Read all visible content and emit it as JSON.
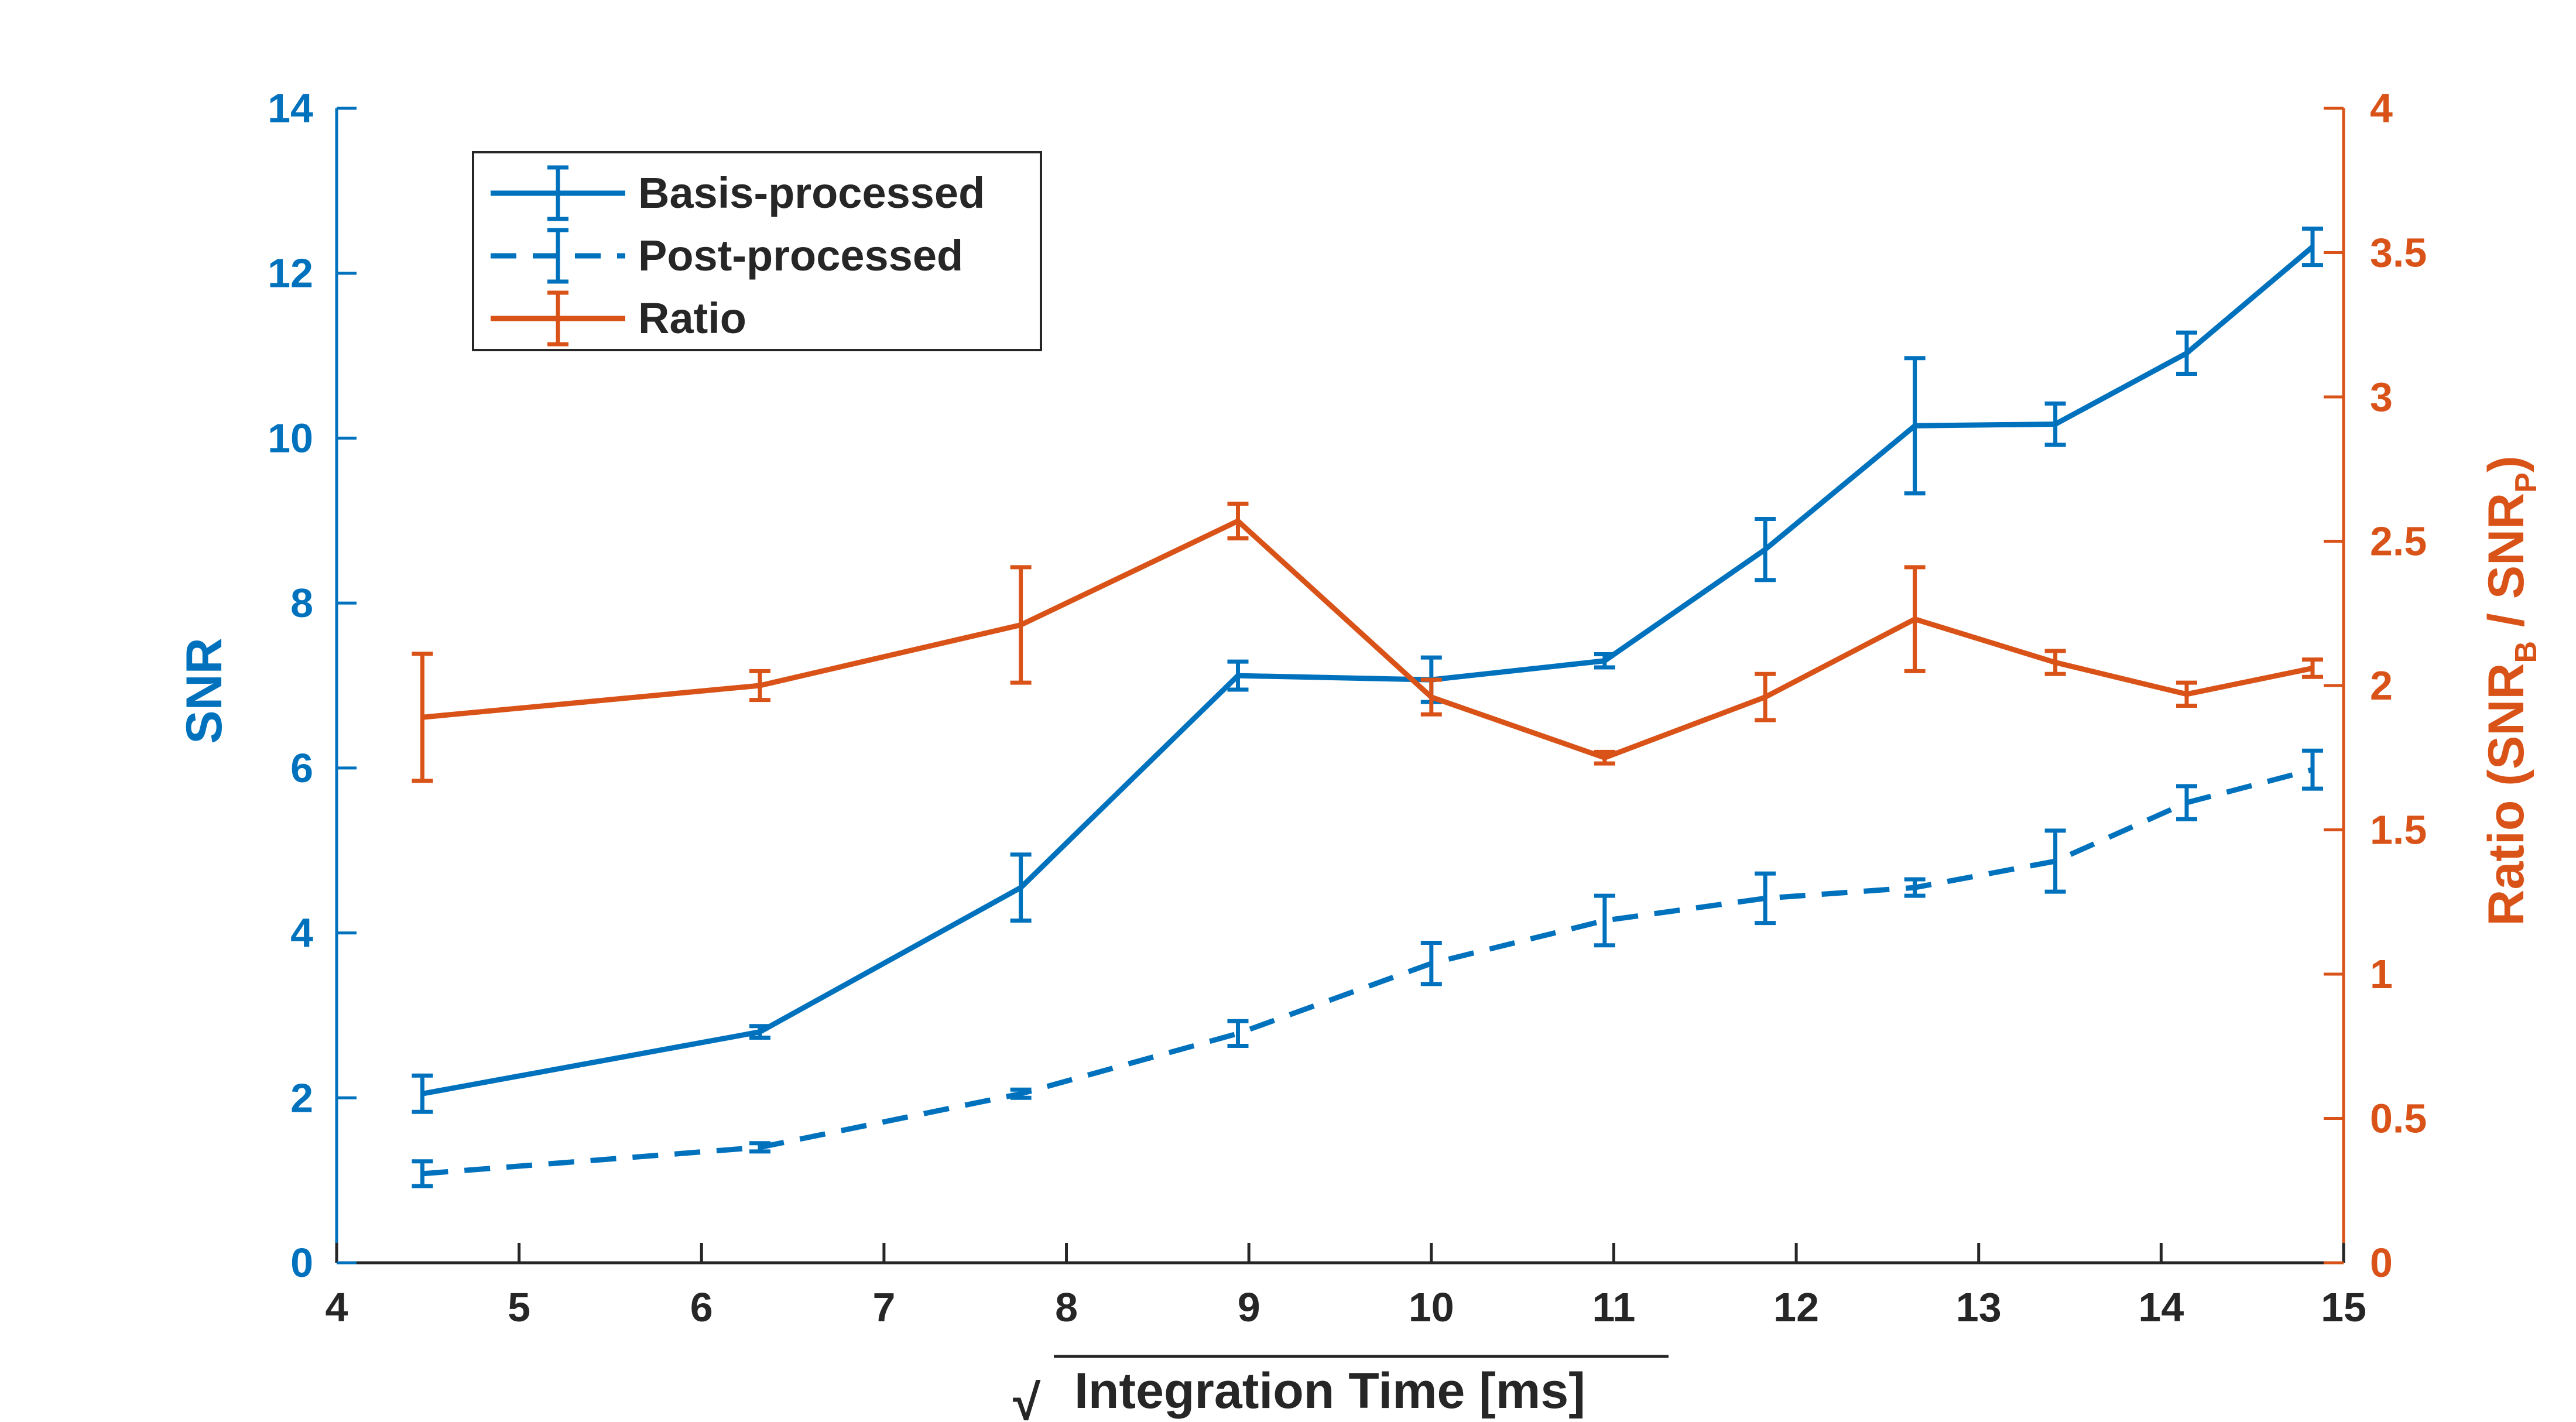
{
  "chart_data": {
    "type": "line",
    "x_label": "Integration Time [ms]",
    "x_label_prefix": "√",
    "xlim": [
      4,
      15
    ],
    "x_ticks": [
      4,
      5,
      6,
      7,
      8,
      9,
      10,
      11,
      12,
      13,
      14,
      15
    ],
    "y_left_label": "SNR",
    "y_left_lim": [
      0,
      14
    ],
    "y_left_ticks": [
      "0",
      "2",
      "4",
      "6",
      "8",
      "10",
      "12",
      "14"
    ],
    "y_right_label_parts": [
      "Ratio (SNR",
      "B",
      " / SNR",
      "P",
      ")"
    ],
    "y_right_lim": [
      0,
      4
    ],
    "y_right_ticks": [
      "0",
      "0.5",
      "1",
      "1.5",
      "2",
      "2.5",
      "3",
      "3.5",
      "4"
    ],
    "x": [
      4.47,
      6.32,
      7.75,
      8.94,
      10.0,
      10.95,
      11.83,
      12.65,
      13.42,
      14.14,
      14.83
    ],
    "series": [
      {
        "name": "Basis-processed",
        "axis": "left",
        "color": "#0072BD",
        "dash": "solid",
        "values": [
          2.05,
          2.8,
          4.55,
          7.12,
          7.07,
          7.3,
          8.65,
          10.15,
          10.17,
          11.03,
          12.32
        ],
        "errors": [
          0.22,
          0.07,
          0.4,
          0.17,
          0.27,
          0.08,
          0.37,
          0.82,
          0.25,
          0.25,
          0.22
        ]
      },
      {
        "name": "Post-processed",
        "axis": "left",
        "color": "#0072BD",
        "dash": "dashed",
        "values": [
          1.08,
          1.4,
          2.05,
          2.78,
          3.63,
          4.15,
          4.42,
          4.55,
          4.87,
          5.58,
          5.98
        ],
        "errors": [
          0.15,
          0.05,
          0.05,
          0.15,
          0.25,
          0.3,
          0.3,
          0.1,
          0.37,
          0.2,
          0.23
        ]
      },
      {
        "name": "Ratio",
        "axis": "right",
        "color": "#D95319",
        "dash": "solid",
        "values": [
          1.89,
          2.0,
          2.21,
          2.57,
          1.96,
          1.75,
          1.96,
          2.23,
          2.08,
          1.97,
          2.06
        ],
        "errors": [
          0.22,
          0.05,
          0.2,
          0.06,
          0.06,
          0.02,
          0.08,
          0.18,
          0.04,
          0.04,
          0.03
        ]
      }
    ],
    "legend_position": "top-left"
  }
}
